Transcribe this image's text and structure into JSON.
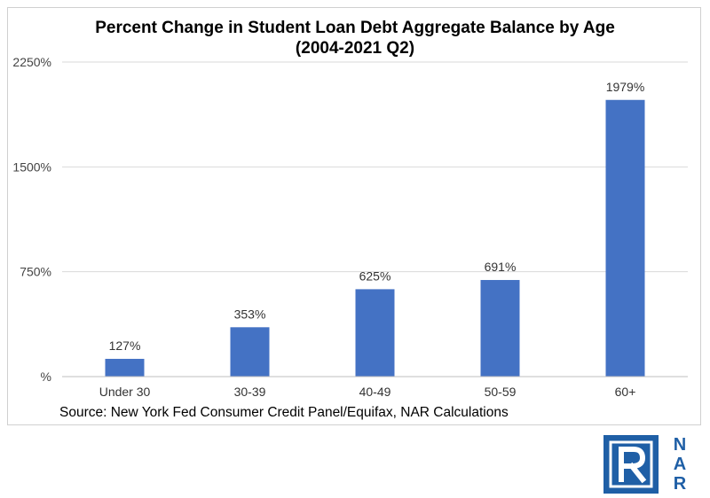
{
  "chart_data": {
    "type": "bar",
    "title": "Percent Change in Student Loan Debt Aggregate Balance by Age (2004-2021 Q2)",
    "categories": [
      "Under 30",
      "30-39",
      "40-49",
      "50-59",
      "60+"
    ],
    "values": [
      127,
      353,
      625,
      691,
      1979
    ],
    "data_labels": [
      "127%",
      "353%",
      "625%",
      "691%",
      "1979%"
    ],
    "ylim": [
      0,
      2250
    ],
    "yticks": [
      0,
      750,
      1500,
      2250
    ],
    "ytick_labels": [
      "%",
      "750%",
      "1500%",
      "2250%"
    ],
    "grid": true,
    "bar_color": "#4472c4",
    "grid_color": "#d9d9d9"
  },
  "source": "Source: New York Fed Consumer Credit Panel/Equifax, NAR Calculations",
  "logo": {
    "name": "NAR",
    "letters": [
      "N",
      "A",
      "R"
    ],
    "color": "#1f5fa6"
  }
}
